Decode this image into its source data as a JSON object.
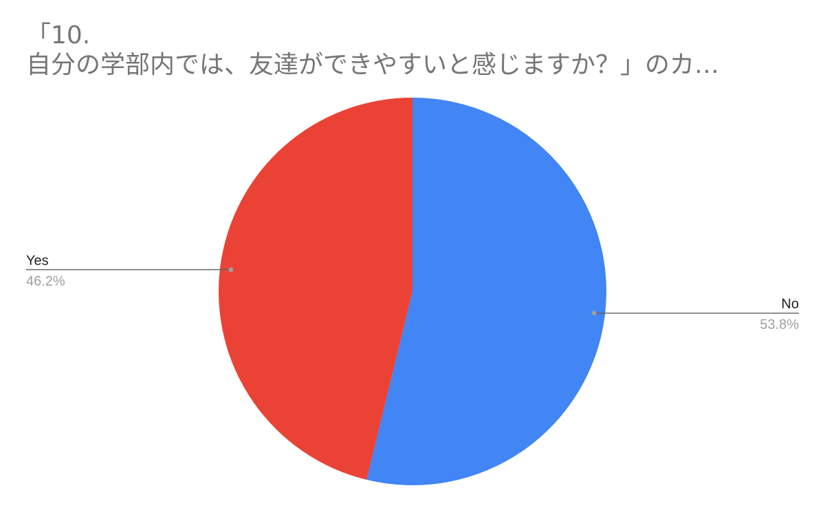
{
  "chart_data": {
    "type": "pie",
    "title_lines": [
      "「10.",
      "自分の学部内では、友達ができやすいと感じますか？」のカ…"
    ],
    "slices": [
      {
        "label": "No",
        "value": 53.8,
        "value_label": "53.8%",
        "color": "#4285f4"
      },
      {
        "label": "Yes",
        "value": 46.2,
        "value_label": "46.2%",
        "color": "#ea4335"
      }
    ],
    "start_angle_deg": 0,
    "direction": "clockwise"
  }
}
